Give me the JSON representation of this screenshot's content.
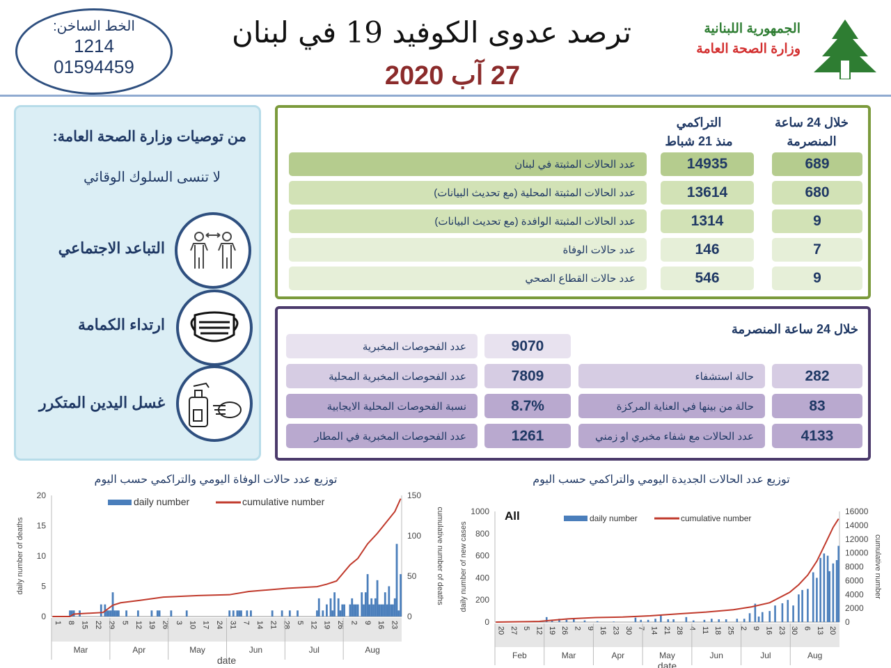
{
  "header": {
    "hotline_label": "الخط الساخن:",
    "hotline_1": "1214",
    "hotline_2": "01594459",
    "title": "ترصد عدوى الكوفيد 19 في لبنان",
    "date": "27 آب 2020",
    "republic": "الجمهورية اللبنانية",
    "ministry": "وزارة الصحة العامة",
    "logo": "cedar-icon"
  },
  "recommendations": {
    "heading": "من توصيات وزارة الصحة العامة:",
    "subheading": "لا تنسى السلوك الوقائي",
    "items": [
      {
        "label": "التباعد الاجتماعي",
        "icon": "social-distancing-icon"
      },
      {
        "label": "ارتداء الكمامة",
        "icon": "face-mask-icon"
      },
      {
        "label": "غسل اليدين المتكرر",
        "icon": "hand-sanitizer-icon"
      }
    ]
  },
  "cases": {
    "col_24h": "خلال 24 ساعة",
    "col_24h_2": "المنصرمة",
    "col_cum": "التراكمي",
    "col_cum_2": "منذ 21 شباط",
    "rows": [
      {
        "label": "عدد الحالات المثبتة في لبنان",
        "cum": "14935",
        "day": "689"
      },
      {
        "label": "عدد الحالات المثبتة المحلية  (مع تحديث البيانات)",
        "cum": "13614",
        "day": "680"
      },
      {
        "label": "عدد الحالات المثبتة الوافدة (مع تحديث البيانات)",
        "cum": "1314",
        "day": "9"
      },
      {
        "label": "عدد حالات الوفاة",
        "cum": "146",
        "day": "7"
      },
      {
        "label": "عدد حالات القطاع الصحي",
        "cum": "546",
        "day": "9"
      }
    ],
    "colors": [
      "#b5cc8e",
      "#d2e2b6",
      "#d2e2b6",
      "#e6efd8",
      "#e6efd8"
    ]
  },
  "tests": {
    "heading": "خلال 24 ساعة المنصرمة",
    "lab_rows": [
      {
        "label": "عدد الفحوصات المخبرية",
        "value": "9070"
      },
      {
        "label": "عدد الفحوصات المخبرية  المحلية",
        "value": "7809"
      },
      {
        "label": "نسبة الفحوصات المحلية الايجابية",
        "value": "8.7%"
      },
      {
        "label": "عدد الفحوصات المخبرية في المطار",
        "value": "1261"
      }
    ],
    "hosp_rows": [
      {
        "label": "حالة استشفاء",
        "value": "282"
      },
      {
        "label": "حالة من بينها في العناية المركزة",
        "value": "83"
      },
      {
        "label": "عدد الحالات مع شفاء مخبري او زمني",
        "value": "4133"
      }
    ],
    "colors": [
      "#e8e2ef",
      "#d6cce3",
      "#b9a9cf",
      "#b9a9cf"
    ]
  },
  "chart_data": [
    {
      "type": "bar+line",
      "title": "توزيع عدد حالات  الوفاة اليومي والتراكمي حسب اليوم",
      "xlabel": "date",
      "ylabel": "daily number of deaths",
      "y2label": "cumulative number of deaths",
      "ylim": [
        0,
        20
      ],
      "y2lim": [
        0,
        150
      ],
      "yticks": [
        0,
        5,
        10,
        15,
        20
      ],
      "y2ticks": [
        0,
        50,
        100,
        150
      ],
      "xrange": [
        "2020-03-01",
        "2020-08-27"
      ],
      "xticks": [
        "1",
        "8",
        "15",
        "22",
        "29",
        "5",
        "12",
        "19",
        "26",
        "3",
        "10",
        "17",
        "24",
        "31",
        "7",
        "14",
        "21",
        "28",
        "5",
        "12",
        "19",
        "26",
        "2",
        "9",
        "16",
        "23"
      ],
      "months": [
        "Mar",
        "Apr",
        "May",
        "Jun",
        "Jul",
        "Aug"
      ],
      "series": [
        {
          "name": "daily number",
          "kind": "bar",
          "color": "#4a7ebb",
          "points": [
            [
              "03-10",
              1
            ],
            [
              "03-11",
              1
            ],
            [
              "03-12",
              1
            ],
            [
              "03-15",
              1
            ],
            [
              "03-26",
              2
            ],
            [
              "03-28",
              2
            ],
            [
              "03-29",
              1
            ],
            [
              "03-30",
              1
            ],
            [
              "03-31",
              1
            ],
            [
              "04-01",
              4
            ],
            [
              "04-02",
              1
            ],
            [
              "04-03",
              1
            ],
            [
              "04-04",
              1
            ],
            [
              "04-08",
              1
            ],
            [
              "04-14",
              1
            ],
            [
              "04-21",
              1
            ],
            [
              "04-24",
              1
            ],
            [
              "04-25",
              1
            ],
            [
              "05-01",
              1
            ],
            [
              "05-09",
              1
            ],
            [
              "05-31",
              1
            ],
            [
              "06-02",
              1
            ],
            [
              "06-04",
              1
            ],
            [
              "06-05",
              1
            ],
            [
              "06-06",
              1
            ],
            [
              "06-09",
              1
            ],
            [
              "06-11",
              1
            ],
            [
              "06-22",
              1
            ],
            [
              "06-27",
              1
            ],
            [
              "07-01",
              1
            ],
            [
              "07-05",
              1
            ],
            [
              "07-15",
              1
            ],
            [
              "07-16",
              3
            ],
            [
              "07-18",
              1
            ],
            [
              "07-20",
              2
            ],
            [
              "07-22",
              3
            ],
            [
              "07-23",
              1
            ],
            [
              "07-24",
              4
            ],
            [
              "07-26",
              3
            ],
            [
              "07-27",
              1
            ],
            [
              "07-28",
              2
            ],
            [
              "07-29",
              2
            ],
            [
              "08-01",
              2
            ],
            [
              "08-02",
              3
            ],
            [
              "08-03",
              2
            ],
            [
              "08-04",
              2
            ],
            [
              "08-05",
              2
            ],
            [
              "08-07",
              4
            ],
            [
              "08-08",
              2
            ],
            [
              "08-09",
              4
            ],
            [
              "08-10",
              7
            ],
            [
              "08-11",
              2
            ],
            [
              "08-12",
              3
            ],
            [
              "08-13",
              2
            ],
            [
              "08-14",
              3
            ],
            [
              "08-15",
              6
            ],
            [
              "08-16",
              2
            ],
            [
              "08-17",
              2
            ],
            [
              "08-18",
              2
            ],
            [
              "08-19",
              4
            ],
            [
              "08-20",
              2
            ],
            [
              "08-21",
              5
            ],
            [
              "08-22",
              2
            ],
            [
              "08-23",
              2
            ],
            [
              "08-24",
              3
            ],
            [
              "08-25",
              12
            ],
            [
              "08-26",
              1
            ],
            [
              "08-27",
              7
            ]
          ]
        },
        {
          "name": "cumulative number",
          "kind": "line",
          "axis": "right",
          "color": "#c0392b",
          "points": [
            [
              "03-01",
              0
            ],
            [
              "03-10",
              0
            ],
            [
              "03-12",
              3
            ],
            [
              "03-27",
              5
            ],
            [
              "04-01",
              14
            ],
            [
              "04-05",
              17
            ],
            [
              "04-15",
              20
            ],
            [
              "04-27",
              24
            ],
            [
              "05-15",
              26
            ],
            [
              "05-31",
              27
            ],
            [
              "06-10",
              31
            ],
            [
              "06-30",
              35
            ],
            [
              "07-15",
              37
            ],
            [
              "07-20",
              40
            ],
            [
              "07-25",
              44
            ],
            [
              "08-01",
              64
            ],
            [
              "08-05",
              72
            ],
            [
              "08-10",
              90
            ],
            [
              "08-15",
              103
            ],
            [
              "08-20",
              118
            ],
            [
              "08-24",
              130
            ],
            [
              "08-27",
              146
            ]
          ]
        }
      ],
      "legend": "top"
    },
    {
      "type": "bar+line",
      "title": "توزيع عدد الحالات الجديدة اليومي والتراكمي حسب اليوم",
      "annotation": "All",
      "xlabel": "date",
      "ylabel": "daily number of new cases",
      "y2label": "cumulative number",
      "ylim": [
        0,
        1000
      ],
      "y2lim": [
        0,
        16000
      ],
      "yticks": [
        0,
        200,
        400,
        600,
        800,
        1000
      ],
      "y2ticks": [
        0,
        2000,
        4000,
        6000,
        8000,
        10000,
        12000,
        14000,
        16000
      ],
      "xrange": [
        "2020-02-20",
        "2020-08-27"
      ],
      "xticks": [
        "20",
        "27",
        "5",
        "12",
        "19",
        "26",
        "2",
        "9",
        "16",
        "23",
        "30",
        "7",
        "14",
        "21",
        "28",
        "4",
        "11",
        "18",
        "25",
        "2",
        "9",
        "16",
        "23",
        "30",
        "6",
        "13",
        "20"
      ],
      "months": [
        "Feb",
        "Mar",
        "Apr",
        "May",
        "Jun",
        "Jul",
        "Aug"
      ],
      "series": [
        {
          "name": "daily number",
          "kind": "bar",
          "color": "#4a7ebb",
          "points": [
            [
              "03-05",
              3
            ],
            [
              "03-12",
              10
            ],
            [
              "03-19",
              45
            ],
            [
              "03-22",
              20
            ],
            [
              "03-26",
              30
            ],
            [
              "03-30",
              20
            ],
            [
              "04-03",
              30
            ],
            [
              "04-09",
              15
            ],
            [
              "04-16",
              8
            ],
            [
              "04-25",
              5
            ],
            [
              "05-07",
              40
            ],
            [
              "05-10",
              20
            ],
            [
              "05-14",
              20
            ],
            [
              "05-18",
              30
            ],
            [
              "05-21",
              60
            ],
            [
              "05-25",
              25
            ],
            [
              "05-28",
              25
            ],
            [
              "06-04",
              45
            ],
            [
              "06-08",
              15
            ],
            [
              "06-14",
              20
            ],
            [
              "06-18",
              30
            ],
            [
              "06-22",
              25
            ],
            [
              "06-26",
              25
            ],
            [
              "07-02",
              30
            ],
            [
              "07-06",
              30
            ],
            [
              "07-09",
              80
            ],
            [
              "07-12",
              166
            ],
            [
              "07-14",
              50
            ],
            [
              "07-16",
              90
            ],
            [
              "07-20",
              100
            ],
            [
              "07-23",
              150
            ],
            [
              "07-27",
              170
            ],
            [
              "07-30",
              200
            ],
            [
              "08-02",
              150
            ],
            [
              "08-05",
              250
            ],
            [
              "08-07",
              290
            ],
            [
              "08-10",
              300
            ],
            [
              "08-13",
              450
            ],
            [
              "08-15",
              400
            ],
            [
              "08-17",
              580
            ],
            [
              "08-19",
              620
            ],
            [
              "08-21",
              600
            ],
            [
              "08-22",
              460
            ],
            [
              "08-24",
              530
            ],
            [
              "08-26",
              560
            ],
            [
              "08-27",
              689
            ]
          ]
        },
        {
          "name": "cumulative number",
          "kind": "line",
          "axis": "right",
          "color": "#c0392b",
          "points": [
            [
              "02-20",
              0
            ],
            [
              "03-15",
              100
            ],
            [
              "03-31",
              470
            ],
            [
              "04-15",
              650
            ],
            [
              "04-30",
              730
            ],
            [
              "05-15",
              900
            ],
            [
              "05-31",
              1200
            ],
            [
              "06-15",
              1450
            ],
            [
              "06-30",
              1790
            ],
            [
              "07-10",
              2200
            ],
            [
              "07-20",
              2800
            ],
            [
              "07-31",
              4300
            ],
            [
              "08-05",
              5400
            ],
            [
              "08-10",
              6800
            ],
            [
              "08-15",
              8800
            ],
            [
              "08-20",
              11500
            ],
            [
              "08-24",
              13700
            ],
            [
              "08-27",
              14935
            ]
          ]
        }
      ],
      "legend": "top"
    }
  ]
}
